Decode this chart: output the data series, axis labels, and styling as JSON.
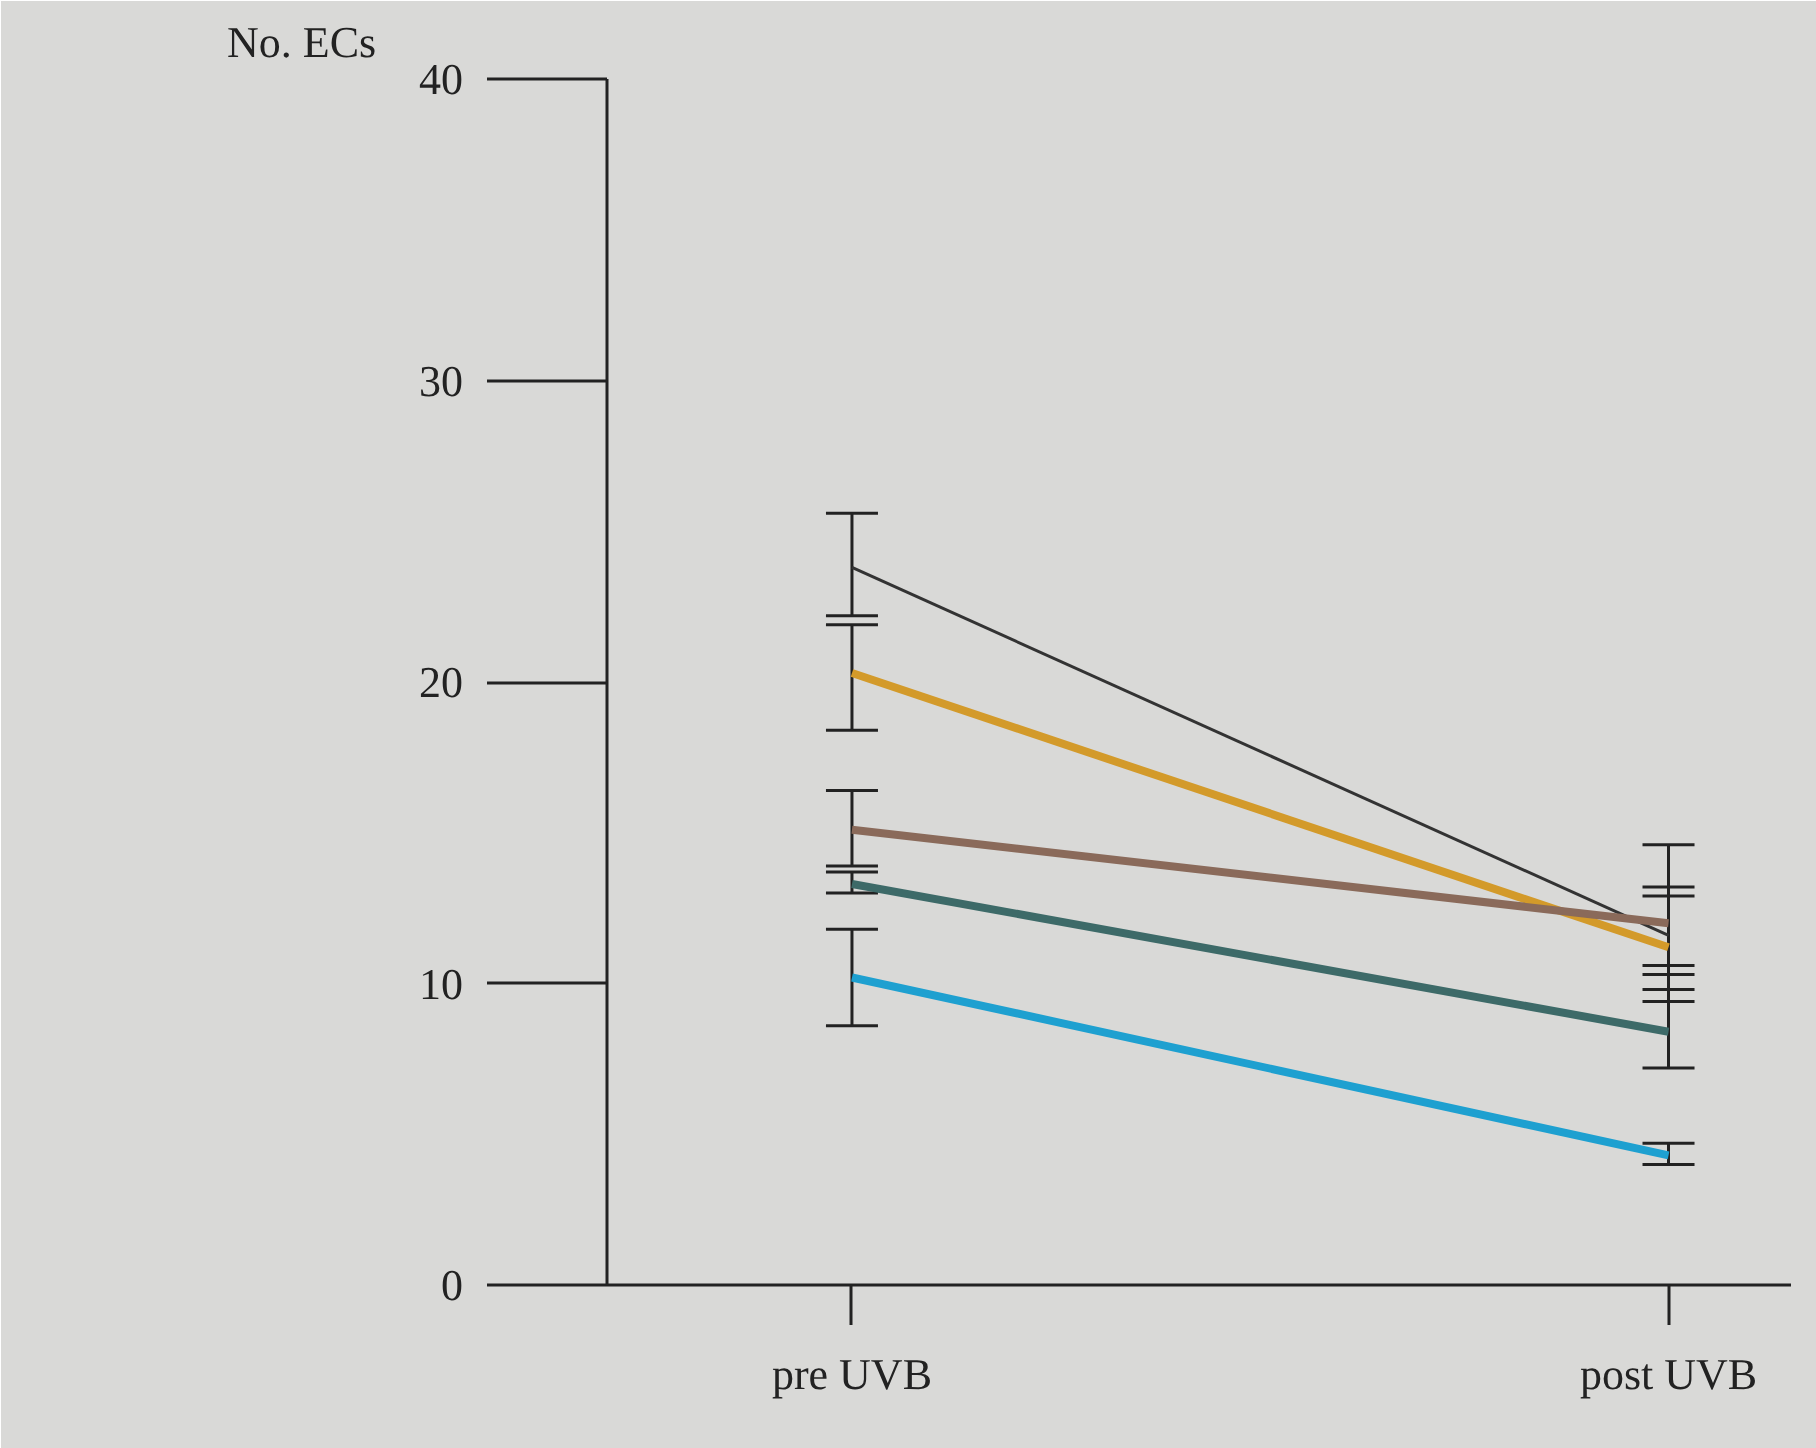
{
  "chart_data": {
    "type": "line",
    "ylabel": "No. ECs",
    "categories": [
      "pre UVB",
      "post UVB"
    ],
    "ylim": [
      0,
      40
    ],
    "yticks": [
      0,
      10,
      20,
      30,
      40
    ],
    "grid": false,
    "marker": "none",
    "line_style": "solid",
    "series": [
      {
        "color": "#333333",
        "values": [
          23.8,
          11.6
        ],
        "errors": [
          [
            22.2,
            25.6
          ],
          [
            10.3,
            12.9
          ]
        ]
      },
      {
        "color": "#d39a2a",
        "values": [
          20.3,
          11.2
        ],
        "errors": [
          [
            18.4,
            21.9
          ],
          [
            10.6,
            13.2
          ]
        ]
      },
      {
        "color": "#8a6a5a",
        "values": [
          15.1,
          12.0
        ],
        "errors": [
          [
            13.9,
            16.4
          ],
          [
            9.4,
            14.6
          ]
        ]
      },
      {
        "color": "#3d6a68",
        "values": [
          13.3,
          8.4
        ],
        "errors": [
          [
            13.0,
            13.7
          ],
          [
            7.2,
            9.8
          ]
        ]
      },
      {
        "color": "#1ea0d0",
        "values": [
          10.2,
          4.3
        ],
        "errors": [
          [
            8.6,
            11.8
          ],
          [
            4.0,
            4.7
          ]
        ]
      }
    ]
  }
}
